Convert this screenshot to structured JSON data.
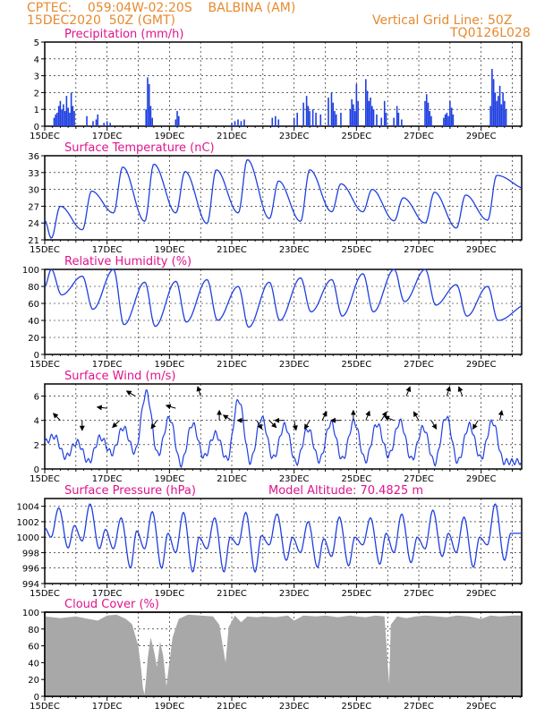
{
  "header": {
    "line1": "CPTEC:    059:04W-02:20S    BALBINA (AM)",
    "line2": "15DEC2020  50Z (GMT)",
    "grid_note": "Vertical Grid Line: 50Z",
    "code": "TQ0126L028",
    "model_altitude": "Model Altitude: 70.4825  m"
  },
  "colors": {
    "header": "#e68a2e",
    "title": "#e0148c",
    "line": "#1f3fe0",
    "bar": "#1f3fe0",
    "cloud": "#a8a8a8",
    "arrow": "#000000"
  },
  "x_labels": [
    "15DEC",
    "17DEC",
    "19DEC",
    "21DEC",
    "23DEC",
    "25DEC",
    "27DEC",
    "29DEC"
  ],
  "chart_data": [
    {
      "type": "bar",
      "title": "Precipitation (mm/h)",
      "ylim": [
        0,
        5
      ],
      "yticks": [
        "0",
        "1",
        "2",
        "3",
        "4",
        "5"
      ],
      "x_start_day": 0,
      "x_end_day": 15.3,
      "samples": [
        [
          0.3,
          0.5
        ],
        [
          0.35,
          0.7
        ],
        [
          0.4,
          0.8
        ],
        [
          0.45,
          1.2
        ],
        [
          0.5,
          1.5
        ],
        [
          0.55,
          1.0
        ],
        [
          0.6,
          1.3
        ],
        [
          0.65,
          0.9
        ],
        [
          0.7,
          1.8
        ],
        [
          0.75,
          1.1
        ],
        [
          0.8,
          0.8
        ],
        [
          0.85,
          2.0
        ],
        [
          0.9,
          1.2
        ],
        [
          0.95,
          0.9
        ],
        [
          1.35,
          0.6
        ],
        [
          1.55,
          0.3
        ],
        [
          1.65,
          0.4
        ],
        [
          1.7,
          0.7
        ],
        [
          1.9,
          0.2
        ],
        [
          2.0,
          0.3
        ],
        [
          2.1,
          0.2
        ],
        [
          3.25,
          1.0
        ],
        [
          3.3,
          2.9
        ],
        [
          3.35,
          2.5
        ],
        [
          3.4,
          1.2
        ],
        [
          3.45,
          0.5
        ],
        [
          4.2,
          0.4
        ],
        [
          4.25,
          0.9
        ],
        [
          4.3,
          0.6
        ],
        [
          6.0,
          0.2
        ],
        [
          6.1,
          0.3
        ],
        [
          6.2,
          0.4
        ],
        [
          6.3,
          0.3
        ],
        [
          6.4,
          0.4
        ],
        [
          7.3,
          0.5
        ],
        [
          7.4,
          0.6
        ],
        [
          7.5,
          0.4
        ],
        [
          8.0,
          0.5
        ],
        [
          8.1,
          0.8
        ],
        [
          8.3,
          1.4
        ],
        [
          8.4,
          1.8
        ],
        [
          8.45,
          1.2
        ],
        [
          8.5,
          0.9
        ],
        [
          8.6,
          1.0
        ],
        [
          8.7,
          0.8
        ],
        [
          8.85,
          0.7
        ],
        [
          9.1,
          1.7
        ],
        [
          9.2,
          2.0
        ],
        [
          9.25,
          1.4
        ],
        [
          9.3,
          0.9
        ],
        [
          9.35,
          0.7
        ],
        [
          9.5,
          0.8
        ],
        [
          9.8,
          1.0
        ],
        [
          9.85,
          1.6
        ],
        [
          9.9,
          1.3
        ],
        [
          9.95,
          0.9
        ],
        [
          10.0,
          2.5
        ],
        [
          10.05,
          1.5
        ],
        [
          10.3,
          2.8
        ],
        [
          10.35,
          2.1
        ],
        [
          10.4,
          1.5
        ],
        [
          10.45,
          1.7
        ],
        [
          10.5,
          1.2
        ],
        [
          10.55,
          1.0
        ],
        [
          10.65,
          0.7
        ],
        [
          10.8,
          0.5
        ],
        [
          10.9,
          1.5
        ],
        [
          10.95,
          0.8
        ],
        [
          11.2,
          0.5
        ],
        [
          11.3,
          1.2
        ],
        [
          11.35,
          0.8
        ],
        [
          11.45,
          0.4
        ],
        [
          12.2,
          1.5
        ],
        [
          12.25,
          1.9
        ],
        [
          12.3,
          1.4
        ],
        [
          12.35,
          0.9
        ],
        [
          12.4,
          0.6
        ],
        [
          12.8,
          0.5
        ],
        [
          12.85,
          0.7
        ],
        [
          12.9,
          0.8
        ],
        [
          12.95,
          0.6
        ],
        [
          13.0,
          1.5
        ],
        [
          13.05,
          1.1
        ],
        [
          13.1,
          0.7
        ],
        [
          14.3,
          1.2
        ],
        [
          14.35,
          3.4
        ],
        [
          14.4,
          2.8
        ],
        [
          14.45,
          2.0
        ],
        [
          14.5,
          1.5
        ],
        [
          14.55,
          1.8
        ],
        [
          14.6,
          2.4
        ],
        [
          14.65,
          1.3
        ],
        [
          14.7,
          2.0
        ],
        [
          14.75,
          1.5
        ],
        [
          14.8,
          1.0
        ]
      ]
    },
    {
      "type": "line",
      "title": "Surface Temperature (nC)",
      "ylim": [
        21,
        36
      ],
      "yticks": [
        "21",
        "24",
        "27",
        "30",
        "33",
        "36"
      ],
      "x_start_day": 0,
      "x_end_day": 15.3,
      "daily_max": [
        27,
        29.7,
        34,
        34.5,
        33.2,
        33.5,
        35.3,
        31.5,
        33.5,
        31,
        30,
        28.5,
        29.5,
        29,
        32.5,
        30
      ],
      "daily_min": [
        21.3,
        22.8,
        25.8,
        24.3,
        25.8,
        23.9,
        25.8,
        24.8,
        24.3,
        26.0,
        26.0,
        24.4,
        24.0,
        23.1,
        24.5
      ],
      "min_hour": 5,
      "max_hour": 12
    },
    {
      "type": "line",
      "title": "Relative Humidity (%)",
      "ylim": [
        0,
        100
      ],
      "yticks": [
        "0",
        "20",
        "40",
        "60",
        "80",
        "100"
      ],
      "x_start_day": 0,
      "x_end_day": 15.3,
      "daily_max": [
        100,
        92,
        100,
        85,
        86,
        88,
        80,
        85,
        90,
        88,
        95,
        100,
        100,
        82,
        80
      ],
      "daily_min": [
        70,
        53,
        35,
        33,
        38,
        40,
        32,
        40,
        50,
        45,
        50,
        62,
        58,
        45,
        40,
        60
      ],
      "max_hour": 5,
      "min_hour": 13
    },
    {
      "type": "line",
      "title": "Surface Wind (m/s)",
      "ylim": [
        0,
        7
      ],
      "yticks": [
        "0",
        "2",
        "4",
        "6"
      ],
      "x_start_day": 0,
      "x_end_day": 15.3,
      "peaks": [
        2.7,
        2.2,
        2.6,
        3.4,
        6.3,
        4.2,
        3.7,
        2.9,
        5.7,
        4.2,
        3.6,
        3.3,
        3.8,
        3.9,
        3.7,
        3.9,
        3.4,
        4.3,
        3.6,
        3.9
      ],
      "troughs": [
        1.0,
        0.6,
        1.3,
        1.4,
        1.2,
        0.4,
        1.0,
        0.8,
        0.6,
        0.9,
        0.5,
        0.7,
        0.8,
        0.7,
        1.1,
        0.8,
        0.5,
        0.6,
        0.9,
        0.6
      ],
      "vectors": [
        [
          0.5,
          4,
          -1,
          1
        ],
        [
          1.2,
          4,
          0,
          -1
        ],
        [
          2.0,
          5,
          -1.7,
          0.2
        ],
        [
          2.4,
          4,
          -1,
          -1
        ],
        [
          2.9,
          6,
          -1,
          0.6
        ],
        [
          3.6,
          4,
          -0.7,
          -1
        ],
        [
          4.2,
          5,
          -1,
          0.3
        ],
        [
          5.0,
          6,
          -0.3,
          1
        ],
        [
          5.6,
          4,
          0,
          1
        ],
        [
          6.0,
          4,
          -0.8,
          0.5
        ],
        [
          6.5,
          4,
          -1,
          0
        ],
        [
          6.8,
          4,
          0.6,
          -1
        ],
        [
          7.2,
          4,
          1,
          -1
        ],
        [
          7.7,
          4,
          -0.8,
          0
        ],
        [
          8.0,
          4,
          0.2,
          -1
        ],
        [
          8.5,
          4,
          -0.6,
          -1
        ],
        [
          8.9,
          4,
          0.5,
          1
        ],
        [
          9.5,
          4,
          -1,
          0
        ],
        [
          9.9,
          4,
          0,
          1
        ],
        [
          10.3,
          4,
          0.4,
          1
        ],
        [
          10.8,
          4,
          0.6,
          1
        ],
        [
          11.2,
          4,
          -1,
          0.4
        ],
        [
          11.6,
          6,
          0.4,
          1
        ],
        [
          12.0,
          4,
          -0.6,
          1
        ],
        [
          12.4,
          4,
          0.6,
          -1
        ],
        [
          12.9,
          6,
          0.3,
          1
        ],
        [
          13.4,
          6,
          -0.4,
          1
        ],
        [
          13.9,
          4,
          -0.6,
          -1
        ],
        [
          14.6,
          4,
          0.2,
          1
        ]
      ]
    },
    {
      "type": "line",
      "title": "Surface Pressure (hPa)",
      "ylim": [
        994,
        1005
      ],
      "yticks": [
        "994",
        "996",
        "998",
        "1000",
        "1002",
        "1004"
      ],
      "x_start_day": 0,
      "x_end_day": 15.3,
      "daily_high": [
        1003.8,
        1004.3,
        1002.5,
        1003.3,
        1003.2,
        1002.5,
        1003.2,
        1003.0,
        1002.0,
        1002.6,
        1002.5,
        1003.0,
        1003.5,
        1002.6,
        1004.3
      ],
      "daily_low": [
        998.6,
        998.5,
        996.0,
        996.0,
        995.5,
        995.5,
        995.5,
        997.0,
        996.1,
        996.3,
        996.5,
        996.7,
        997.5,
        996.1,
        997.0
      ],
      "secondary_high": [
        1001.5,
        1001.0,
        1000.8,
        1000.5,
        1000.0,
        1000.0,
        1000.2,
        1000.0,
        999.8,
        1000.0,
        1000.5,
        1000.0,
        1000.5,
        1000.0,
        1000.5
      ],
      "secondary_low": [
        1000.0,
        999.5,
        998.5,
        998.5,
        998.0,
        998.5,
        999.0,
        999.0,
        998.0,
        997.5,
        999.0,
        998.0,
        998.5,
        998.0,
        999.0
      ]
    },
    {
      "type": "area",
      "title": "Cloud Cover (%)",
      "ylim": [
        0,
        100
      ],
      "yticks": [
        "0",
        "20",
        "40",
        "60",
        "80",
        "100"
      ],
      "x_start_day": 0,
      "x_end_day": 15.3,
      "samples": [
        [
          0.0,
          95
        ],
        [
          0.5,
          93
        ],
        [
          1.0,
          95
        ],
        [
          1.4,
          92
        ],
        [
          1.7,
          90
        ],
        [
          2.0,
          96
        ],
        [
          2.3,
          97
        ],
        [
          2.6,
          92
        ],
        [
          2.8,
          86
        ],
        [
          3.0,
          60
        ],
        [
          3.1,
          30
        ],
        [
          3.15,
          10
        ],
        [
          3.2,
          2
        ],
        [
          3.25,
          20
        ],
        [
          3.3,
          45
        ],
        [
          3.4,
          70
        ],
        [
          3.5,
          55
        ],
        [
          3.6,
          35
        ],
        [
          3.7,
          65
        ],
        [
          3.8,
          48
        ],
        [
          3.9,
          12
        ],
        [
          4.0,
          40
        ],
        [
          4.1,
          70
        ],
        [
          4.3,
          92
        ],
        [
          4.6,
          97
        ],
        [
          5.0,
          96
        ],
        [
          5.4,
          95
        ],
        [
          5.6,
          85
        ],
        [
          5.8,
          40
        ],
        [
          5.9,
          82
        ],
        [
          6.1,
          96
        ],
        [
          6.3,
          88
        ],
        [
          6.5,
          95
        ],
        [
          6.8,
          94
        ],
        [
          7.0,
          95
        ],
        [
          7.4,
          94
        ],
        [
          7.8,
          96
        ],
        [
          8.0,
          90
        ],
        [
          8.3,
          96
        ],
        [
          8.7,
          95
        ],
        [
          9.0,
          96
        ],
        [
          9.4,
          94
        ],
        [
          9.8,
          96
        ],
        [
          10.0,
          95
        ],
        [
          10.3,
          94
        ],
        [
          10.6,
          96
        ],
        [
          10.9,
          95
        ],
        [
          11.0,
          40
        ],
        [
          11.05,
          15
        ],
        [
          11.1,
          85
        ],
        [
          11.3,
          95
        ],
        [
          11.6,
          93
        ],
        [
          11.9,
          95
        ],
        [
          12.2,
          96
        ],
        [
          12.6,
          95
        ],
        [
          12.9,
          94
        ],
        [
          13.2,
          96
        ],
        [
          13.6,
          95
        ],
        [
          14.0,
          92
        ],
        [
          14.3,
          96
        ],
        [
          14.6,
          95
        ],
        [
          15.0,
          96
        ],
        [
          15.3,
          96
        ]
      ]
    }
  ]
}
